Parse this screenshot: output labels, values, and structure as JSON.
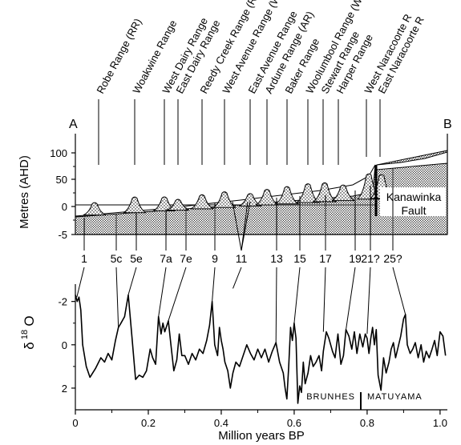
{
  "section_labels": {
    "start": "A",
    "end": "B"
  },
  "ranges": [
    "Robe Range (RR)",
    "Woakwine Range",
    "West Dairy Range",
    "East Dairy Range",
    "Reedy Creek Range (RCR)",
    "West Avenue Range (WAR)",
    "East Avenue Range",
    "Ardune Range (AR)",
    "Baker Range",
    "Woolumbool Range (WR)",
    "Stewart Range",
    "Harper Range",
    "West Naracoorte R",
    "East Naracoorte R"
  ],
  "fault_label_line1": "Kanawinka",
  "fault_label_line2": "Fault",
  "top_panel": {
    "ylabel": "Metres (AHD)",
    "yticks": [
      "100",
      "50",
      "0",
      "-5"
    ]
  },
  "isotope_stages": [
    "1",
    "5c",
    "5e",
    "7a",
    "7e",
    "9",
    "11",
    "13",
    "15",
    "17",
    "19",
    "21?",
    "25?"
  ],
  "bottom_panel": {
    "ylabel_main": "δ",
    "ylabel_sup": "18",
    "ylabel_end": "O",
    "yticks": [
      "-2",
      "0",
      "2"
    ],
    "xticks": [
      "0",
      "0.2",
      "0.4",
      "0.6",
      "0.8",
      "1.0"
    ],
    "xlabel": "Million years BP",
    "chron_left": "BRUNHES",
    "chron_right": "MATUYAMA"
  },
  "chart_data": {
    "type": "line",
    "xlabel": "Million years BP",
    "ylabel": "δ18O",
    "xlim": [
      0,
      1.02
    ],
    "ylim": [
      3,
      -2.8
    ],
    "y_axis_inverted": true,
    "series": [
      {
        "x": [
          0.0,
          0.005,
          0.01,
          0.015,
          0.02,
          0.03,
          0.04,
          0.055,
          0.07,
          0.08,
          0.09,
          0.1,
          0.11,
          0.118,
          0.125,
          0.135,
          0.145,
          0.155,
          0.165,
          0.175,
          0.185,
          0.195,
          0.205,
          0.212,
          0.22,
          0.228,
          0.235,
          0.24,
          0.245,
          0.255,
          0.262,
          0.27,
          0.278,
          0.285,
          0.292,
          0.3,
          0.31,
          0.32,
          0.33,
          0.34,
          0.35,
          0.36,
          0.368,
          0.375,
          0.382,
          0.39,
          0.395,
          0.4,
          0.405,
          0.41,
          0.418,
          0.425,
          0.432,
          0.44,
          0.45,
          0.46,
          0.47,
          0.48,
          0.49,
          0.5,
          0.51,
          0.52,
          0.53,
          0.54,
          0.55,
          0.56,
          0.57,
          0.575,
          0.58,
          0.585,
          0.59,
          0.595,
          0.6,
          0.605,
          0.61,
          0.615,
          0.62,
          0.625,
          0.63,
          0.638,
          0.645,
          0.652,
          0.66,
          0.668,
          0.675,
          0.68,
          0.688,
          0.695,
          0.705,
          0.712,
          0.72,
          0.728,
          0.735,
          0.742,
          0.75,
          0.758,
          0.765,
          0.772,
          0.78,
          0.788,
          0.795,
          0.8,
          0.805,
          0.81,
          0.815,
          0.82,
          0.825,
          0.83,
          0.838,
          0.845,
          0.852,
          0.86,
          0.866,
          0.872,
          0.878,
          0.885,
          0.892,
          0.9,
          0.905,
          0.91,
          0.918,
          0.925,
          0.932,
          0.94,
          0.948,
          0.955,
          0.962,
          0.97,
          0.978,
          0.985,
          0.992,
          1.0,
          1.008,
          1.015
        ],
        "y": [
          -2.3,
          -2.0,
          -2.2,
          -1.6,
          0.0,
          1.0,
          1.5,
          1.1,
          0.6,
          0.8,
          0.4,
          0.7,
          -0.2,
          -0.8,
          -1.0,
          -1.3,
          -2.3,
          -0.4,
          1.6,
          1.4,
          1.5,
          1.2,
          0.2,
          0.6,
          0.9,
          -1.3,
          -0.5,
          -1.0,
          -0.6,
          -1.1,
          0.0,
          1.2,
          0.7,
          -0.5,
          0.5,
          0.5,
          0.9,
          0.4,
          0.7,
          0.2,
          0.4,
          -0.2,
          -0.9,
          -2.0,
          0.0,
          0.5,
          -0.8,
          -0.2,
          0.2,
          0.8,
          1.2,
          2.0,
          1.3,
          0.8,
          1.0,
          0.5,
          0.0,
          0.4,
          0.7,
          0.2,
          0.6,
          0.2,
          0.8,
          0.3,
          -0.1,
          0.8,
          1.3,
          2.0,
          2.5,
          1.0,
          -0.8,
          -0.2,
          -1.0,
          -0.3,
          2.7,
          1.9,
          2.2,
          0.8,
          1.8,
          1.3,
          0.5,
          1.0,
          0.8,
          0.5,
          1.2,
          0.3,
          -0.6,
          -0.3,
          0.3,
          0.6,
          -0.5,
          0.9,
          0.5,
          -0.7,
          -0.4,
          0.2,
          -0.6,
          0.4,
          -0.5,
          0.1,
          -0.5,
          -0.3,
          0.4,
          -0.3,
          -0.8,
          0.0,
          -0.7,
          1.4,
          2.1,
          0.6,
          1.3,
          0.8,
          0.2,
          -0.1,
          0.6,
          0.1,
          -0.4,
          -1.2,
          -1.4,
          0.0,
          0.4,
          0.2,
          -0.1,
          0.6,
          0.0,
          0.8,
          0.3,
          0.6,
          0.2,
          -0.2,
          0.5,
          -0.6,
          -0.4,
          0.5
        ]
      }
    ]
  }
}
